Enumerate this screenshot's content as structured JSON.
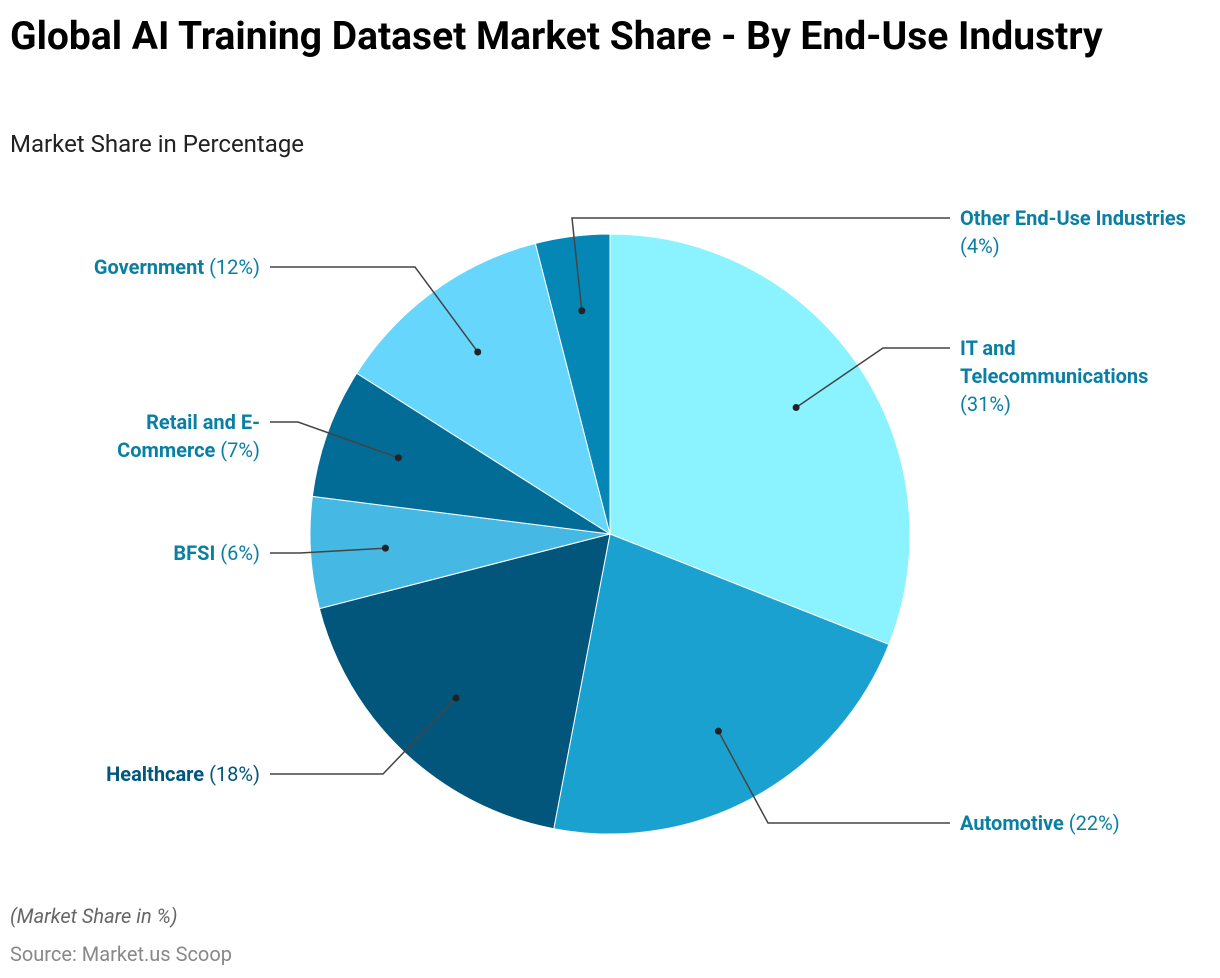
{
  "chart_data": {
    "type": "pie",
    "title": "Global AI Training Dataset Market Share - By End-Use Industry",
    "subtitle": "Market Share in Percentage",
    "categories": [
      "IT and Telecommunications",
      "Automotive",
      "Healthcare",
      "BFSI",
      "Retail and E-Commerce",
      "Government",
      "Other End-Use Industries"
    ],
    "values": [
      31,
      22,
      18,
      6,
      7,
      12,
      4
    ],
    "value_labels": [
      "(31%)",
      "(22%)",
      "(18%)",
      "(6%)",
      "(7%)",
      "(12%)",
      "(4%)"
    ],
    "colors": [
      "#8af3ff",
      "#1aa1cf",
      "#02557b",
      "#45b9e4",
      "#026c97",
      "#66d6fc",
      "#0487b5"
    ],
    "note": "(Market Share in %)",
    "source": "Source: Market.us Scoop"
  }
}
